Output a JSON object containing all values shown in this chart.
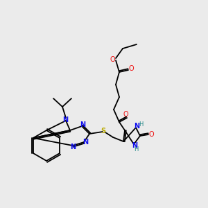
{
  "background_color": "#ebebeb",
  "atom_colors": {
    "C": "#000000",
    "N": "#1010ee",
    "O": "#ee1010",
    "S": "#bbaa00",
    "H": "#228888"
  },
  "bond_lw": 1.3,
  "font_size": 7.0,
  "fig_size": [
    3.0,
    3.0
  ],
  "dpi": 100
}
